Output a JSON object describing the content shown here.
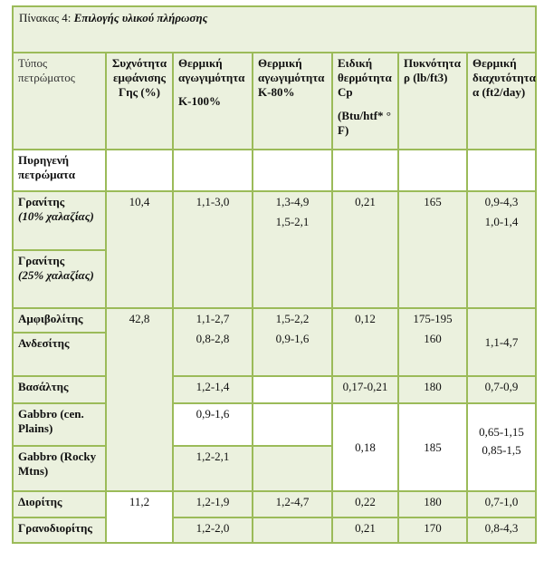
{
  "caption": {
    "label": "Πίνακας 4:",
    "title": "Επιλογής υλικού πλήρωσης"
  },
  "headers": {
    "rock_type": "Τύπος πετρώματος",
    "earth_occurrence": "Συχνότητα εμφάνισης Γης (%)",
    "conductivity_k100": "Θερμική αγωγιμότητα",
    "conductivity_k100_unit": "K-100%",
    "conductivity_k80": "Θερμική αγωγιμότητα K-80%",
    "specific_heat": "Ειδική θερμότητα Cp",
    "specific_heat_unit": "(Btu/htf* ° F)",
    "density": "Πυκνότητα ρ (lb/ft3)",
    "diffusivity": "Θερμική διαχυτότητα α (ft2/day)"
  },
  "rows": {
    "igneous": {
      "name": "Πυρηγενή πετρώματα"
    },
    "granite10": {
      "name": "Γρανίτης",
      "note": "(10% χαλαζίας)"
    },
    "granite25": {
      "name": "Γρανίτης",
      "note": "(25% χαλαζίας)"
    },
    "granite_group": {
      "occurrence": "10,4",
      "k100": "1,1-3,0",
      "k80_1": "1,3-4,9",
      "k80_2": "1,5-2,1",
      "cp": "0,21",
      "density": "165",
      "diff_1": "0,9-4,3",
      "diff_2": "1,0-1,4"
    },
    "amphibolite": {
      "name": "Αμφιβολίτης"
    },
    "andesite": {
      "name": "Ανδεσίτης"
    },
    "amph_and_group": {
      "k100_1": "1,1-2,7",
      "k100_2": "0,8-2,8",
      "k80_1": "1,5-2,2",
      "k80_2": "0,9-1,6",
      "cp": "0,12",
      "density_1": "175-195",
      "density_2": "160",
      "diff": "1,1-4,7"
    },
    "mafic_occurrence": "42,8",
    "basalt": {
      "name": "Βασάλτης",
      "k100": "1,2-1,4",
      "cp": "0,17-0,21",
      "density": "180",
      "diff": "0,7-0,9"
    },
    "gabbro_cp": {
      "name": "Gabbro (cen. Plains)",
      "k100": "0,9-1,6"
    },
    "gabbro_rm": {
      "name": "Gabbro (Rocky Mtns)",
      "k100": "1,2-2,1"
    },
    "gabbro_group": {
      "cp": "0,18",
      "density": "185",
      "diff_1": "0,65-1,15",
      "diff_2": "0,85-1,5"
    },
    "diorite": {
      "name": "Διορίτης",
      "occurrence": "11,2",
      "k100": "1,2-1,9",
      "k80": "1,2-4,7",
      "cp": "0,22",
      "density": "180",
      "diff": "0,7-1,0"
    },
    "granodiorite": {
      "name": "Γρανοδιορίτης",
      "k100": "1,2-2,0",
      "cp": "0,21",
      "density": "170",
      "diff": "0,8-4,3"
    }
  },
  "colors": {
    "border": "#9bbb59",
    "shade": "#ebf1de",
    "white": "#ffffff"
  }
}
